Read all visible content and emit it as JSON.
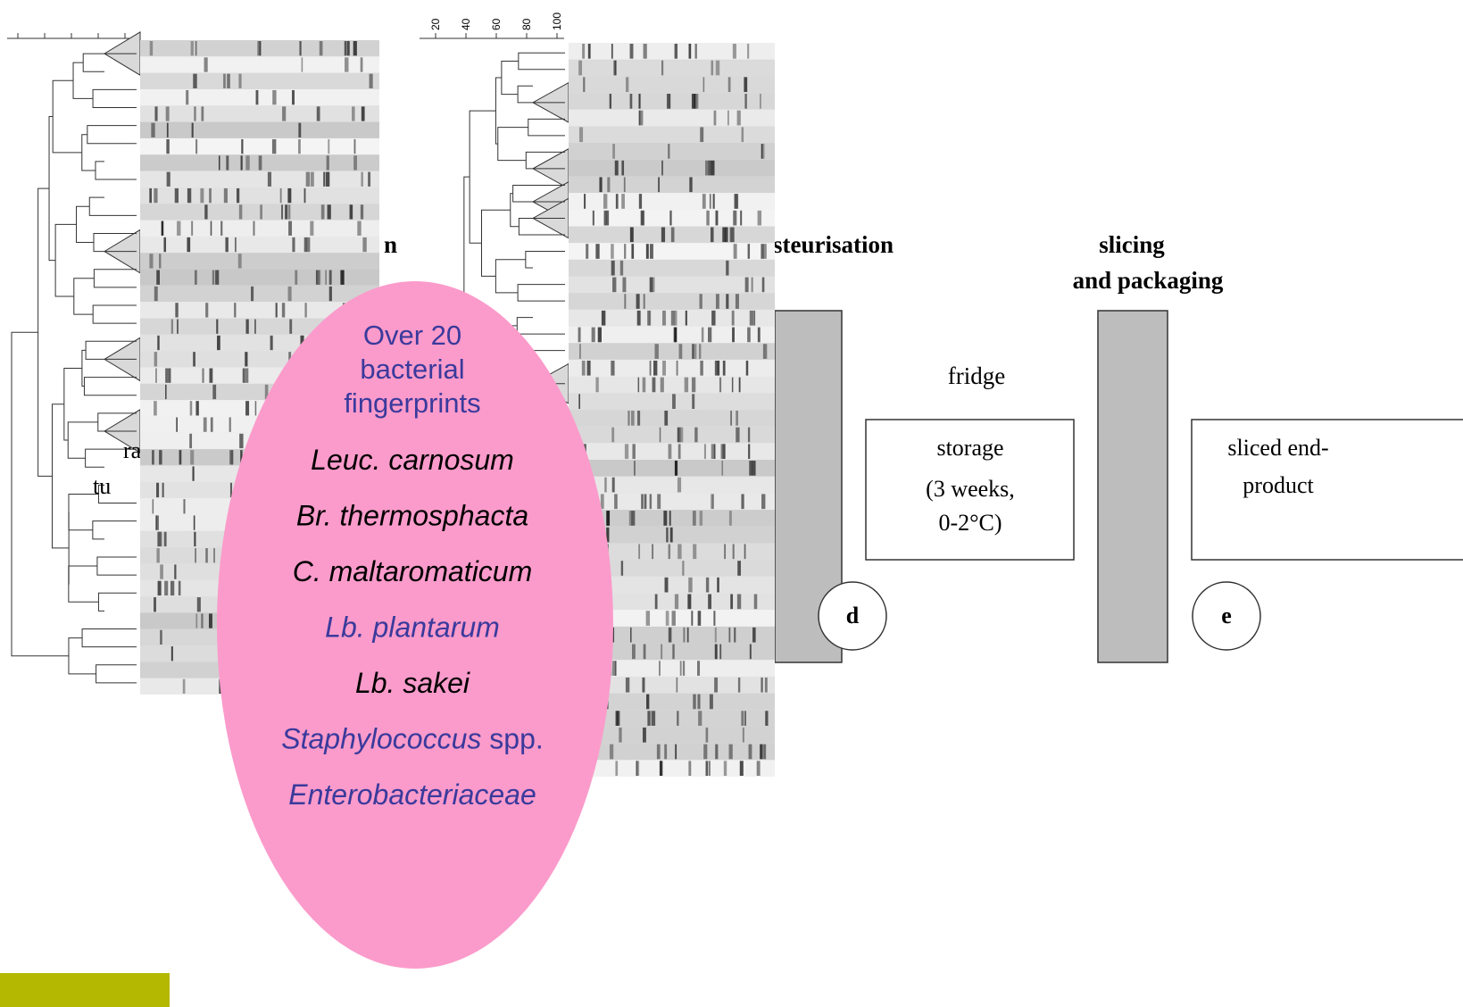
{
  "dendrogram_right_ticks": [
    "20",
    "40",
    "60",
    "80",
    "100"
  ],
  "fragments": [
    "n",
    "ra",
    "tu"
  ],
  "flow": {
    "step_d_title": "steurisation",
    "step_e_title": [
      "slicing",
      "and packaging"
    ],
    "fridge": "fridge",
    "storage": [
      "storage",
      "(3 weeks,",
      "0-2°C)"
    ],
    "end_product": [
      "sliced end-",
      "product"
    ],
    "marker_d": "d",
    "marker_e": "e"
  },
  "ellipse": {
    "color": "#fb9bcb",
    "header": {
      "lines": [
        "Over 20",
        "bacterial",
        "fingerprints"
      ],
      "color": "#3a3a9c"
    },
    "species": [
      {
        "italic": "Leuc. carnosum",
        "color": "#000000"
      },
      {
        "italic": "Br. thermosphacta",
        "color": "#000000"
      },
      {
        "italic": "C. maltaromaticum",
        "color": "#000000"
      },
      {
        "italic": "Lb. plantarum",
        "color": "#3a3a9c"
      },
      {
        "italic": "Lb. sakei",
        "color": "#000000"
      },
      {
        "italic": "Staphylococcus",
        "plain": "spp.",
        "color": "#3a3a9c"
      },
      {
        "italic": "Enterobacteriaceae",
        "color": "#3a3a9c"
      }
    ]
  }
}
